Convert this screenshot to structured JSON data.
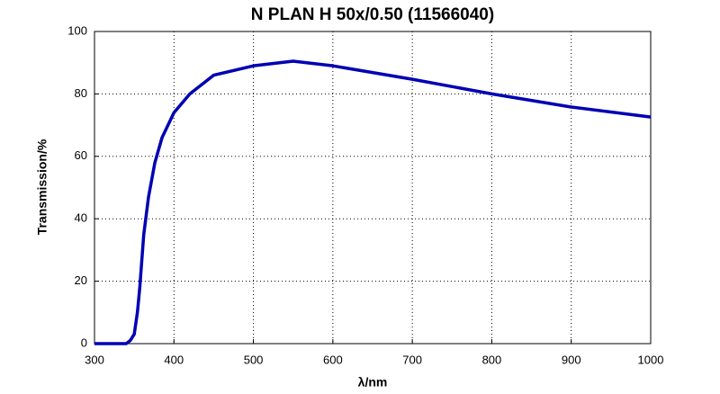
{
  "chart_data": {
    "type": "line",
    "title": "N PLAN H 50x/0.50 (11566040)",
    "xlabel": "λ/nm",
    "ylabel": "Transmission/%",
    "x": [
      300,
      340,
      345,
      350,
      354,
      357,
      362,
      368,
      376,
      385,
      400,
      420,
      450,
      500,
      550,
      600,
      700,
      800,
      900,
      1000
    ],
    "series": [
      {
        "name": "Transmission",
        "color": "#0000b4",
        "values": [
          0,
          0,
          1,
          3,
          10,
          18,
          35,
          47,
          58,
          66,
          74,
          80,
          86,
          89,
          90.5,
          89,
          84.7,
          80,
          75.8,
          72.6
        ]
      }
    ],
    "xlim": [
      300,
      1000
    ],
    "xticks": [
      300,
      400,
      500,
      600,
      700,
      800,
      900,
      1000
    ],
    "ylim": [
      0,
      100
    ],
    "yticks": [
      0,
      20,
      40,
      60,
      80,
      100
    ],
    "grid": true
  }
}
